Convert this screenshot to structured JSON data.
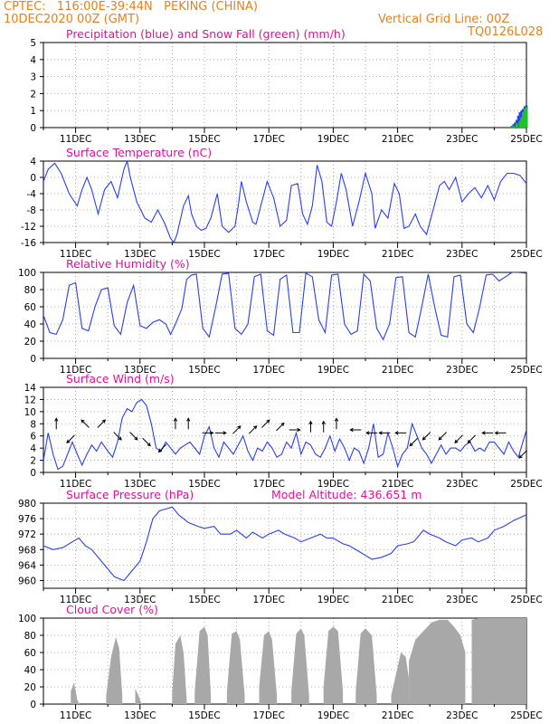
{
  "header": {
    "line1": "CPTEC:   116:00E-39:44N   PEKING (CHINA)",
    "line2": "10DEC2020 00Z (GMT)",
    "grid_note": "Vertical Grid Line: 00Z",
    "code": "TQ0126L028"
  },
  "colors": {
    "header": "#e8801a",
    "title": "#e0109a",
    "line": "#2a3ff0",
    "snow": "#22c02a",
    "cloud": "#a8a8a8",
    "axis": "#000000"
  },
  "date_ticks": [
    "11DEC",
    "13DEC",
    "15DEC",
    "17DEC",
    "19DEC",
    "21DEC",
    "23DEC",
    "25DEC"
  ],
  "chart_data": [
    {
      "id": "precip",
      "type": "bar",
      "title": "Precipitation (blue) and Snow Fall (green) (mm/h)",
      "x_unit": "days since 10DEC2020 00Z",
      "xlim": [
        0,
        15
      ],
      "ylim": [
        0,
        5
      ],
      "yticks": [
        "0",
        "1",
        "2",
        "3",
        "4",
        "5"
      ],
      "series": [
        {
          "name": "Precipitation",
          "color": "#2a3ff0",
          "x": [
            14.55,
            14.6,
            14.65,
            14.7,
            14.75,
            14.8,
            14.85,
            14.9,
            14.95,
            15.0
          ],
          "values": [
            0.1,
            0.2,
            0.3,
            0.45,
            0.7,
            0.9,
            1.0,
            1.1,
            1.25,
            1.3
          ]
        },
        {
          "name": "Snow Fall",
          "color": "#22c02a",
          "x": [
            14.5,
            14.6,
            14.7,
            14.8,
            14.85,
            14.9,
            14.95,
            15.0
          ],
          "values": [
            0.05,
            0.1,
            0.25,
            0.4,
            0.6,
            0.9,
            1.1,
            1.2
          ]
        }
      ]
    },
    {
      "id": "temp",
      "type": "line",
      "title": "Surface Temperature (nC)",
      "ylim": [
        -16,
        4
      ],
      "yticks": [
        "-16",
        "-12",
        "-8",
        "-4",
        "0",
        "4"
      ],
      "x": [
        0,
        0.15,
        0.35,
        0.55,
        0.8,
        1.05,
        1.2,
        1.35,
        1.5,
        1.7,
        1.9,
        2.1,
        2.3,
        2.5,
        2.6,
        2.7,
        2.9,
        3.15,
        3.35,
        3.55,
        3.75,
        3.95,
        4.05,
        4.15,
        4.35,
        4.5,
        4.6,
        4.75,
        4.9,
        5.05,
        5.2,
        5.3,
        5.4,
        5.55,
        5.75,
        5.95,
        6.05,
        6.15,
        6.3,
        6.5,
        6.6,
        6.75,
        6.95,
        7.15,
        7.35,
        7.55,
        7.7,
        7.9,
        8.05,
        8.2,
        8.35,
        8.5,
        8.65,
        8.8,
        8.95,
        9.1,
        9.25,
        9.4,
        9.6,
        9.8,
        10,
        10.2,
        10.3,
        10.5,
        10.7,
        10.9,
        11.05,
        11.2,
        11.35,
        11.55,
        11.7,
        11.9,
        12.1,
        12.3,
        12.45,
        12.6,
        12.8,
        13.0,
        13.2,
        13.4,
        13.6,
        13.8,
        14.0,
        14.2,
        14.4,
        14.6,
        14.8,
        15.0
      ],
      "values": [
        -1,
        2,
        3.5,
        1,
        -4,
        -7,
        -3,
        0,
        -3,
        -9,
        -3,
        -1,
        -5,
        2,
        4,
        0,
        -6,
        -10,
        -11,
        -8,
        -11,
        -15,
        -16,
        -14,
        -7,
        -4.5,
        -9,
        -12,
        -13,
        -12.5,
        -10,
        -7,
        -4,
        -12,
        -13.5,
        -12,
        -7,
        -1,
        -6,
        -11,
        -11.5,
        -7,
        -1,
        -5,
        -12,
        -10.5,
        -2,
        -1.5,
        -9,
        -11.5,
        -7,
        3,
        -1,
        -11,
        -12,
        -6,
        1,
        -3,
        -12,
        -6,
        1,
        -4,
        -12.5,
        -8,
        -10,
        -1.5,
        -4,
        -12.5,
        -12,
        -9,
        -12,
        -14,
        -8,
        -2,
        -1,
        -3,
        0,
        -6,
        -4,
        -2.5,
        -5,
        -2,
        -5.5,
        -1,
        1,
        1,
        0.5,
        -1.5
      ]
    },
    {
      "id": "rh",
      "type": "line",
      "title": "Relative Humidity (%)",
      "ylim": [
        0,
        100
      ],
      "yticks": [
        "0",
        "20",
        "40",
        "60",
        "80",
        "100"
      ],
      "x": [
        0,
        0.2,
        0.4,
        0.6,
        0.8,
        1.0,
        1.2,
        1.4,
        1.6,
        1.8,
        2.0,
        2.2,
        2.4,
        2.6,
        2.8,
        3.0,
        3.2,
        3.4,
        3.6,
        3.8,
        3.95,
        4.1,
        4.3,
        4.45,
        4.6,
        4.75,
        4.95,
        5.15,
        5.35,
        5.55,
        5.75,
        5.95,
        6.15,
        6.35,
        6.55,
        6.75,
        6.95,
        7.15,
        7.35,
        7.55,
        7.75,
        7.95,
        8.15,
        8.35,
        8.55,
        8.75,
        8.95,
        9.15,
        9.35,
        9.55,
        9.75,
        9.95,
        10.15,
        10.35,
        10.55,
        10.75,
        10.95,
        11.15,
        11.35,
        11.55,
        11.75,
        11.95,
        12.15,
        12.35,
        12.55,
        12.75,
        12.95,
        13.15,
        13.35,
        13.55,
        13.75,
        13.95,
        14.15,
        14.35,
        14.55,
        14.75,
        15.0
      ],
      "values": [
        50,
        30,
        28,
        45,
        85,
        88,
        35,
        32,
        60,
        80,
        82,
        38,
        28,
        65,
        85,
        38,
        35,
        42,
        45,
        40,
        28,
        40,
        58,
        92,
        97,
        98,
        35,
        25,
        60,
        98,
        99,
        35,
        28,
        40,
        95,
        98,
        32,
        27,
        92,
        97,
        30,
        30,
        99,
        95,
        45,
        30,
        97,
        98,
        40,
        28,
        32,
        98,
        90,
        35,
        22,
        40,
        94,
        95,
        30,
        25,
        60,
        98,
        60,
        27,
        25,
        95,
        97,
        40,
        30,
        60,
        97,
        98,
        90,
        95,
        100,
        100,
        99
      ]
    },
    {
      "id": "wind",
      "type": "line",
      "title": "Surface Wind (m/s)",
      "ylim": [
        0,
        14
      ],
      "yticks": [
        "0",
        "2",
        "4",
        "6",
        "8",
        "10",
        "12",
        "14"
      ],
      "x": [
        0,
        0.15,
        0.3,
        0.45,
        0.6,
        0.75,
        0.9,
        1.05,
        1.2,
        1.35,
        1.5,
        1.65,
        1.8,
        2.0,
        2.15,
        2.3,
        2.45,
        2.6,
        2.75,
        2.9,
        3.05,
        3.2,
        3.35,
        3.5,
        3.65,
        3.8,
        3.95,
        4.1,
        4.25,
        4.4,
        4.55,
        4.7,
        4.85,
        5.0,
        5.15,
        5.3,
        5.45,
        5.6,
        5.75,
        5.9,
        6.05,
        6.2,
        6.35,
        6.5,
        6.65,
        6.8,
        6.95,
        7.1,
        7.25,
        7.4,
        7.55,
        7.7,
        7.85,
        8.0,
        8.15,
        8.3,
        8.45,
        8.6,
        8.75,
        8.9,
        9.05,
        9.2,
        9.35,
        9.5,
        9.65,
        9.8,
        9.95,
        10.1,
        10.25,
        10.4,
        10.55,
        10.7,
        10.85,
        11.0,
        11.15,
        11.3,
        11.45,
        11.6,
        11.75,
        11.9,
        12.05,
        12.2,
        12.35,
        12.5,
        12.65,
        12.8,
        12.95,
        13.1,
        13.25,
        13.4,
        13.55,
        13.7,
        13.85,
        14.0,
        14.15,
        14.3,
        14.45,
        14.6,
        14.75,
        15.0
      ],
      "values": [
        2,
        6.5,
        3,
        0.5,
        1,
        3,
        5,
        3,
        1.2,
        3,
        4.5,
        3.5,
        5,
        3.5,
        2.5,
        5,
        9,
        10.5,
        10,
        11.5,
        12,
        11,
        8,
        4,
        3.5,
        5,
        4,
        3,
        4,
        4.5,
        5,
        4,
        3,
        6,
        7.5,
        4,
        2.5,
        5,
        4,
        3,
        4.5,
        6,
        3.5,
        2,
        4,
        3.5,
        5,
        4,
        2.5,
        3,
        5,
        4,
        6.5,
        3,
        5,
        4.5,
        3,
        2.5,
        4,
        6,
        3.5,
        5.5,
        4,
        2,
        4,
        3.5,
        1.5,
        4,
        8,
        2.5,
        3,
        6.5,
        4,
        1,
        3,
        4,
        8,
        6,
        4,
        3,
        1.5,
        3,
        4.5,
        3,
        4,
        4,
        3.5,
        4.5,
        5,
        3.5,
        4,
        3.5,
        5,
        5,
        4,
        3,
        5,
        3.5,
        2.5,
        7
      ]
    },
    {
      "id": "pressure",
      "type": "line",
      "title": "Surface Pressure (hPa)",
      "annotation": "Model Altitude: 436.651 m",
      "ylim": [
        958,
        980
      ],
      "yticks": [
        "960",
        "964",
        "968",
        "972",
        "976",
        "980"
      ],
      "x": [
        0,
        0.3,
        0.6,
        0.9,
        1.1,
        1.3,
        1.5,
        1.8,
        2.0,
        2.2,
        2.5,
        2.7,
        3.0,
        3.2,
        3.4,
        3.6,
        3.8,
        4.0,
        4.2,
        4.5,
        4.8,
        5.0,
        5.3,
        5.5,
        5.8,
        6.0,
        6.3,
        6.5,
        6.8,
        7.0,
        7.3,
        7.5,
        7.8,
        8.0,
        8.3,
        8.6,
        8.8,
        9.0,
        9.3,
        9.5,
        9.8,
        10.0,
        10.2,
        10.5,
        10.8,
        11.0,
        11.3,
        11.5,
        11.8,
        12.0,
        12.3,
        12.5,
        12.8,
        13.0,
        13.3,
        13.5,
        13.8,
        14.0,
        14.3,
        14.6,
        15.0
      ],
      "values": [
        969,
        968,
        968.5,
        970,
        971,
        969,
        968,
        965,
        963,
        961,
        960,
        962,
        965,
        970,
        976,
        978,
        978.5,
        979,
        977,
        975,
        974,
        973.5,
        974,
        972,
        972,
        973,
        971,
        972.5,
        971,
        972,
        973,
        972,
        971,
        970,
        971,
        972,
        971,
        971,
        969.5,
        969,
        967.5,
        966.5,
        965.5,
        966,
        967,
        969,
        969.5,
        970,
        973,
        972,
        971,
        970,
        969,
        970.5,
        971,
        970,
        971,
        973,
        974,
        975.5,
        977
      ]
    },
    {
      "id": "cloud",
      "type": "area",
      "title": "Cloud Cover (%)",
      "ylim": [
        0,
        100
      ],
      "yticks": [
        "0",
        "20",
        "40",
        "60",
        "80",
        "100"
      ],
      "segments": [
        {
          "x": [
            0.85,
            0.95,
            1.05,
            1.12
          ],
          "values": [
            15,
            25,
            5,
            0
          ]
        },
        {
          "x": [
            1.95,
            2.1,
            2.25,
            2.35,
            2.45
          ],
          "values": [
            10,
            55,
            78,
            65,
            10
          ]
        },
        {
          "x": [
            2.85,
            2.95,
            3.05
          ],
          "values": [
            18,
            10,
            0
          ]
        },
        {
          "x": [
            4.0,
            4.1,
            4.25,
            4.35,
            4.45
          ],
          "values": [
            15,
            70,
            80,
            60,
            5
          ]
        },
        {
          "x": [
            4.7,
            4.85,
            5.0,
            5.1,
            5.2
          ],
          "values": [
            15,
            85,
            90,
            80,
            10
          ]
        },
        {
          "x": [
            5.7,
            5.85,
            6.0,
            6.1,
            6.25
          ],
          "values": [
            15,
            82,
            85,
            75,
            10
          ]
        },
        {
          "x": [
            6.7,
            6.85,
            7.0,
            7.1,
            7.25
          ],
          "values": [
            20,
            80,
            85,
            75,
            10
          ]
        },
        {
          "x": [
            7.7,
            7.85,
            8.0,
            8.1,
            8.25
          ],
          "values": [
            15,
            82,
            88,
            80,
            10
          ]
        },
        {
          "x": [
            8.7,
            8.85,
            9.0,
            9.15,
            9.3
          ],
          "values": [
            20,
            85,
            90,
            85,
            15
          ]
        },
        {
          "x": [
            9.7,
            9.85,
            10.0,
            10.2,
            10.35
          ],
          "values": [
            15,
            82,
            88,
            80,
            10
          ]
        },
        {
          "x": [
            10.8,
            10.95,
            11.1,
            11.25,
            11.35
          ],
          "values": [
            10,
            35,
            60,
            55,
            30
          ]
        },
        {
          "x": [
            11.35,
            11.55,
            11.8,
            12.05,
            12.3,
            12.55,
            12.75,
            12.95,
            13.1
          ],
          "values": [
            50,
            75,
            85,
            95,
            98,
            98,
            90,
            80,
            60
          ]
        },
        {
          "x": [
            13.3,
            13.5,
            13.7,
            14.0,
            14.3,
            14.6,
            15.0
          ],
          "values": [
            98,
            100,
            100,
            100,
            100,
            100,
            100
          ]
        }
      ]
    }
  ],
  "wind_arrows": [
    {
      "day": 0.4,
      "speed": 8,
      "dir": "N"
    },
    {
      "day": 0.85,
      "speed": 5.5,
      "dir": "SW"
    },
    {
      "day": 1.3,
      "speed": 8,
      "dir": "NW"
    },
    {
      "day": 1.8,
      "speed": 8,
      "dir": "NE"
    },
    {
      "day": 2.3,
      "speed": 6,
      "dir": "SE"
    },
    {
      "day": 2.8,
      "speed": 6,
      "dir": "SE"
    },
    {
      "day": 3.2,
      "speed": 5,
      "dir": "SE"
    },
    {
      "day": 3.7,
      "speed": 4,
      "dir": "SW"
    },
    {
      "day": 4.1,
      "speed": 8,
      "dir": "N"
    },
    {
      "day": 4.5,
      "speed": 8,
      "dir": "N"
    },
    {
      "day": 5.1,
      "speed": 6.5,
      "dir": "E"
    },
    {
      "day": 5.5,
      "speed": 6.5,
      "dir": "E"
    },
    {
      "day": 6.0,
      "speed": 7,
      "dir": "NE"
    },
    {
      "day": 6.5,
      "speed": 7,
      "dir": "NE"
    },
    {
      "day": 6.9,
      "speed": 8,
      "dir": "NE"
    },
    {
      "day": 7.35,
      "speed": 7.5,
      "dir": "NE"
    },
    {
      "day": 7.8,
      "speed": 7,
      "dir": "E"
    },
    {
      "day": 8.3,
      "speed": 7.5,
      "dir": "N"
    },
    {
      "day": 8.7,
      "speed": 7.5,
      "dir": "N"
    },
    {
      "day": 9.1,
      "speed": 8,
      "dir": "N"
    },
    {
      "day": 9.7,
      "speed": 7,
      "dir": "W"
    },
    {
      "day": 10.2,
      "speed": 6.5,
      "dir": "W"
    },
    {
      "day": 10.6,
      "speed": 6.5,
      "dir": "W"
    },
    {
      "day": 11.1,
      "speed": 6.5,
      "dir": "W"
    },
    {
      "day": 11.5,
      "speed": 5,
      "dir": "SW"
    },
    {
      "day": 11.9,
      "speed": 6,
      "dir": "SW"
    },
    {
      "day": 12.4,
      "speed": 6,
      "dir": "SW"
    },
    {
      "day": 12.9,
      "speed": 5.5,
      "dir": "SW"
    },
    {
      "day": 13.3,
      "speed": 5.5,
      "dir": "SW"
    },
    {
      "day": 13.8,
      "speed": 6.5,
      "dir": "W"
    },
    {
      "day": 14.2,
      "speed": 6.5,
      "dir": "W"
    },
    {
      "day": 14.9,
      "speed": 3,
      "dir": "SW"
    }
  ]
}
